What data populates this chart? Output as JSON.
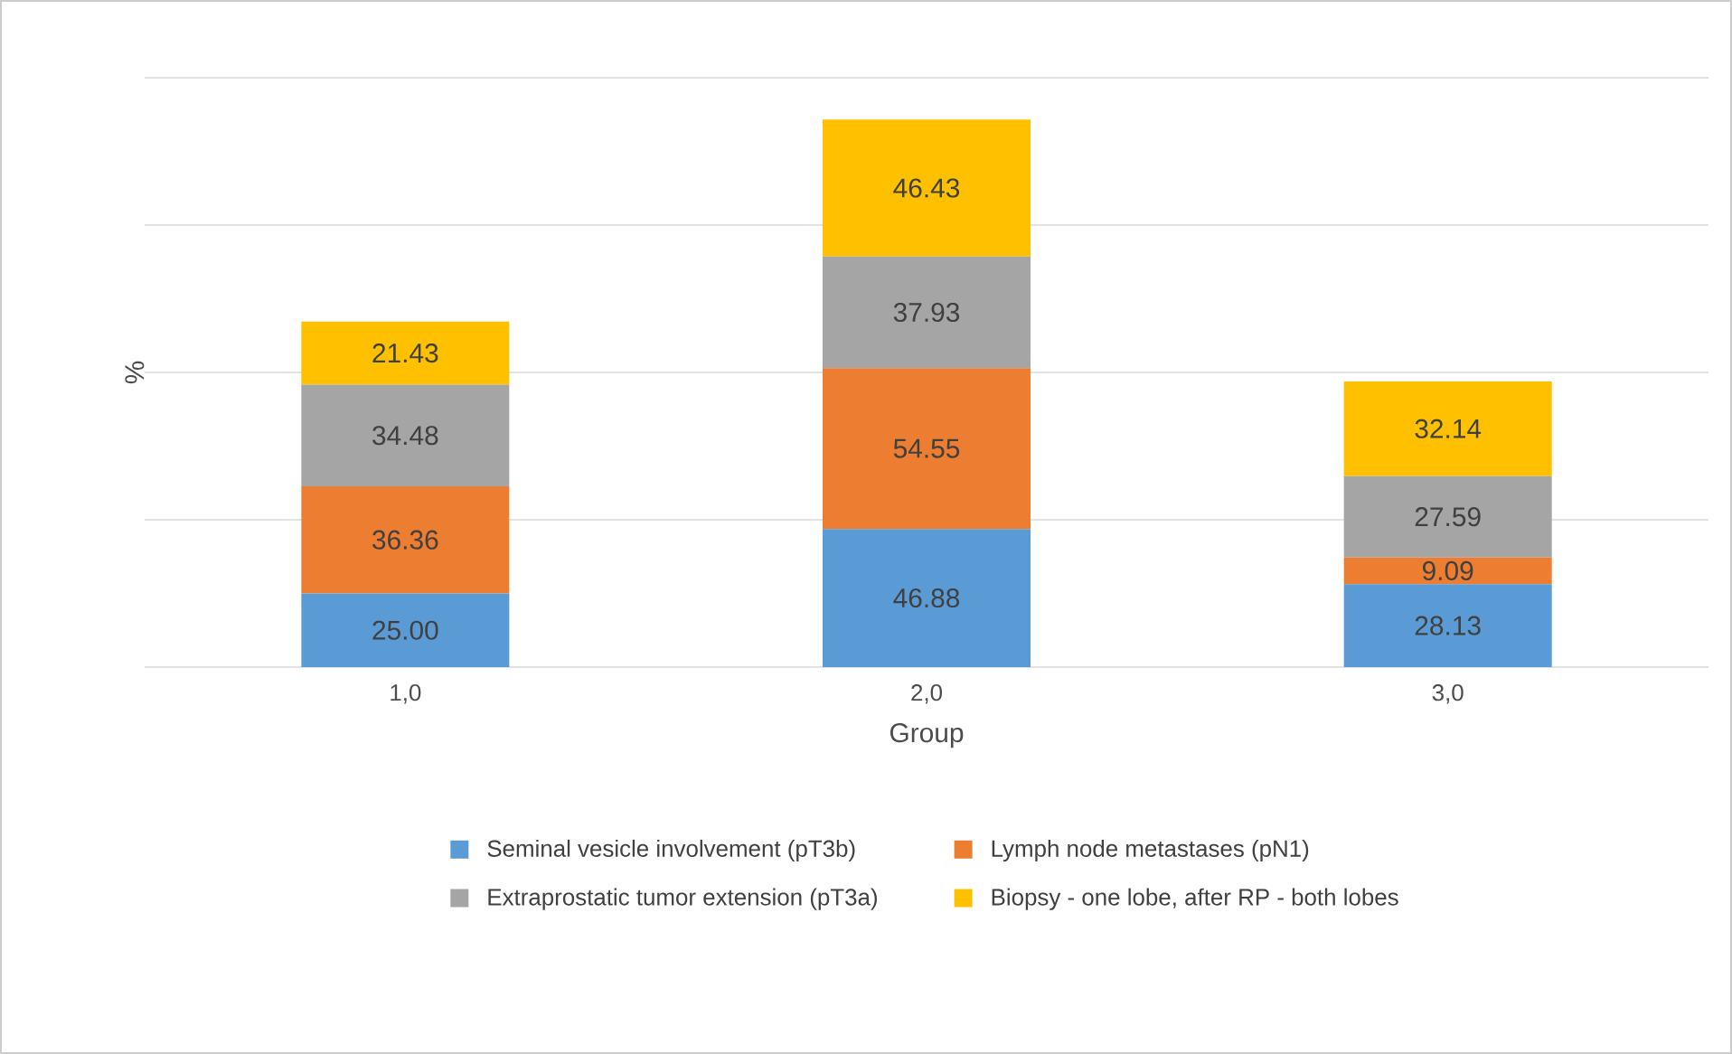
{
  "chart_data": {
    "type": "bar",
    "stacked": true,
    "xlabel": "Group",
    "ylabel": "%",
    "categories": [
      "1,0",
      "2,0",
      "3,0"
    ],
    "series": [
      {
        "name": "Seminal vesicle involvement (pT3b)",
        "color": "#5b9bd5",
        "values": [
          25.0,
          46.88,
          28.13
        ],
        "value_labels": [
          "25.00",
          "46.88",
          "28.13"
        ]
      },
      {
        "name": "Lymph node metastases (pN1)",
        "color": "#ed7d31",
        "values": [
          36.36,
          54.55,
          9.09
        ],
        "value_labels": [
          "36.36",
          "54.55",
          "9.09"
        ]
      },
      {
        "name": "Extraprostatic tumor extension (pT3a)",
        "color": "#a5a5a5",
        "values": [
          34.48,
          37.93,
          27.59
        ],
        "value_labels": [
          "34.48",
          "37.93",
          "27.59"
        ]
      },
      {
        "name": "Biopsy  - one lobe, after RP - both lobes",
        "color": "#ffc000",
        "values": [
          21.43,
          46.43,
          32.14
        ],
        "value_labels": [
          "21.43",
          "46.43",
          "32.14"
        ]
      }
    ],
    "tick_labels": "x",
    "grid": "y",
    "legend": "bottom"
  }
}
